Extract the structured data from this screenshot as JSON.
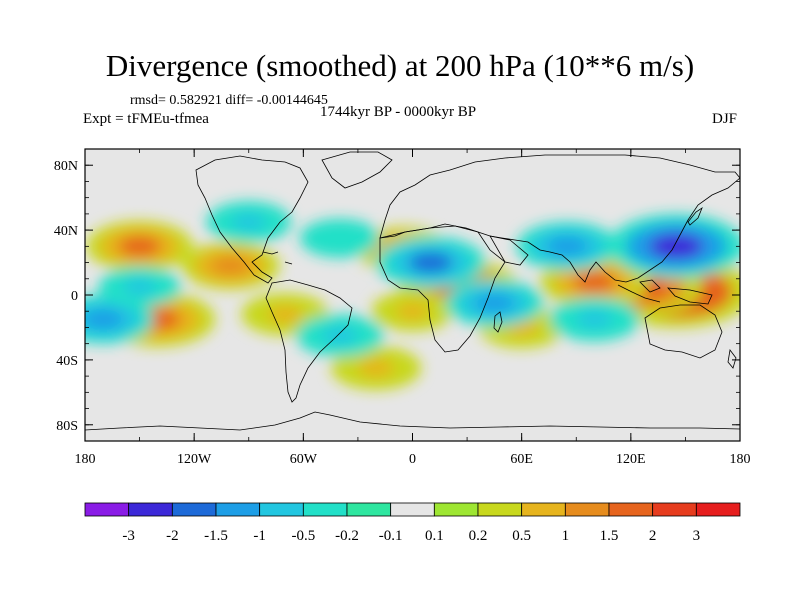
{
  "title": "Divergence (smoothed) at 200 hPa (10**6 m/s)",
  "stats_text": "rmsd= 0.582921 diff= -0.00144645",
  "experiment_text": "Expt = tFMEu-tfmea",
  "period_text": "1744kyr BP - 0000kyr BP",
  "season_text": "DJF",
  "lat_ticks": [
    "80N",
    "40N",
    "0",
    "40S",
    "80S"
  ],
  "lon_ticks": [
    "180",
    "120W",
    "60W",
    "0",
    "60E",
    "120E",
    "180"
  ],
  "colorbar": {
    "labels": [
      "-3",
      "-2",
      "-1.5",
      "-1",
      "-0.5",
      "-0.2",
      "-0.1",
      "0.1",
      "0.2",
      "0.5",
      "1",
      "1.5",
      "2",
      "3"
    ],
    "colors": [
      "#8a1ce6",
      "#3c28d8",
      "#1d6ad8",
      "#1d9ee6",
      "#22c6e0",
      "#22e0c8",
      "#2ee6a0",
      "#e6e6e6",
      "#9ee632",
      "#c8d81e",
      "#e6b41e",
      "#e68c1e",
      "#e6641e",
      "#e63c1e",
      "#e61e1e"
    ]
  },
  "colors": {
    "background": "#e6e6e6",
    "coast": "#000000"
  },
  "chart_data": {
    "type": "heatmap",
    "variable": "Divergence (smoothed) at 200 hPa",
    "units": "10**6 m/s",
    "lon_range": [
      -180,
      180
    ],
    "lat_range": [
      -90,
      90
    ],
    "levels": [
      -3,
      -2,
      -1.5,
      -1,
      -0.5,
      -0.2,
      -0.1,
      0.1,
      0.2,
      0.5,
      1,
      1.5,
      2,
      3
    ],
    "anomaly_centers": [
      {
        "lon": 145,
        "lat": 2,
        "value": 3.2
      },
      {
        "lon": 125,
        "lat": 5,
        "value": 2.2
      },
      {
        "lon": 100,
        "lat": 8,
        "value": 1.6
      },
      {
        "lon": 25,
        "lat": 5,
        "value": 2.0
      },
      {
        "lon": -140,
        "lat": -15,
        "value": 1.8
      },
      {
        "lon": -150,
        "lat": 30,
        "value": 1.5
      },
      {
        "lon": -100,
        "lat": 18,
        "value": 1.2
      },
      {
        "lon": -70,
        "lat": -12,
        "value": 0.8
      },
      {
        "lon": -20,
        "lat": -45,
        "value": 0.9
      },
      {
        "lon": -5,
        "lat": 28,
        "value": 1.0
      },
      {
        "lon": 60,
        "lat": -20,
        "value": 0.7
      },
      {
        "lon": 0,
        "lat": -10,
        "value": 0.6
      },
      {
        "lon": 145,
        "lat": 30,
        "value": -2.6
      },
      {
        "lon": 10,
        "lat": 20,
        "value": -1.6
      },
      {
        "lon": 45,
        "lat": -5,
        "value": -1.2
      },
      {
        "lon": 85,
        "lat": 30,
        "value": -1.3
      },
      {
        "lon": 100,
        "lat": -15,
        "value": -0.9
      },
      {
        "lon": -170,
        "lat": -15,
        "value": -1.3
      },
      {
        "lon": -90,
        "lat": 45,
        "value": -0.7
      },
      {
        "lon": -40,
        "lat": -25,
        "value": -0.8
      },
      {
        "lon": -40,
        "lat": 35,
        "value": -0.5
      },
      {
        "lon": -150,
        "lat": 5,
        "value": -0.6
      }
    ]
  }
}
